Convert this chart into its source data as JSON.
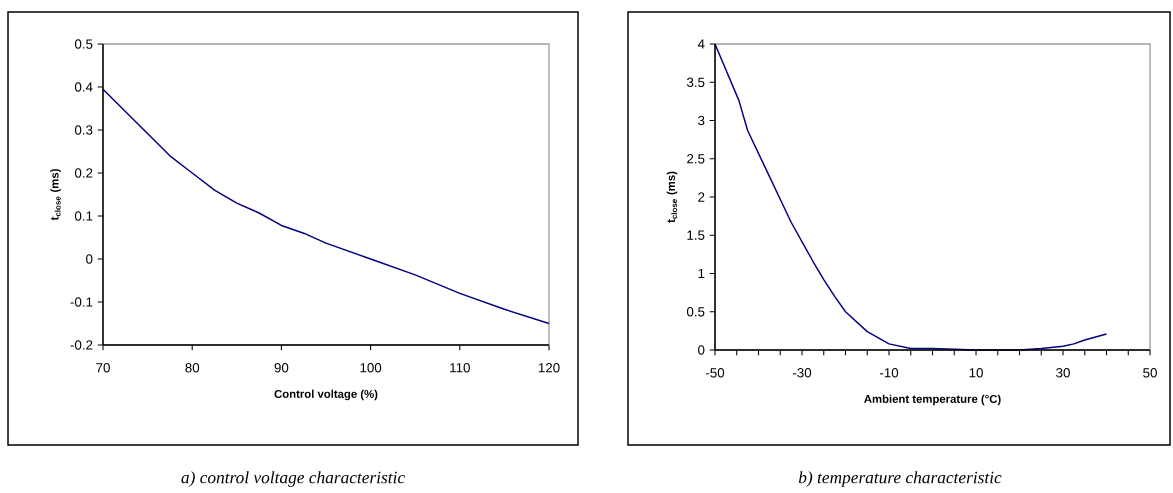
{
  "chart_data": [
    {
      "type": "line",
      "xlabel": "Control voltage (%)",
      "ylabel": "t$_{close}$ (ms)",
      "annotations": [
        "a) control voltage characteristic"
      ],
      "x": [
        70,
        77.5,
        80,
        82.5,
        85,
        87.5,
        90,
        92.5,
        95,
        100,
        105,
        110,
        115,
        120
      ],
      "series": [
        {
          "color": "#000080",
          "values": [
            0.395,
            0.24,
            0.2,
            0.16,
            0.13,
            0.107,
            0.078,
            0.06,
            0.037,
            0.0,
            -0.037,
            -0.08,
            -0.117,
            -0.15
          ]
        }
      ],
      "xlim": [
        70,
        120
      ],
      "ylim": [
        -0.2,
        0.5
      ],
      "xticks": [
        70,
        80,
        90,
        100,
        110,
        120
      ],
      "yticks": [
        -0.2,
        -0.1,
        0,
        0.1,
        0.2,
        0.3,
        0.4,
        0.5
      ]
    },
    {
      "type": "line",
      "xlabel": "Ambient temperature (°C)",
      "ylabel": "t$_{close}$ (ms)",
      "annotations": [
        "b) temperature characteristic"
      ],
      "x": [
        -50,
        -44.5,
        -42.5,
        -32.5,
        -27.5,
        -25,
        -22.5,
        -20,
        -15,
        -10,
        -5,
        0,
        10,
        20,
        25,
        30,
        32.5,
        35,
        40
      ],
      "series": [
        {
          "color": "#000080",
          "values": [
            4.0,
            3.26,
            2.87,
            1.67,
            1.16,
            0.92,
            0.7,
            0.5,
            0.24,
            0.08,
            0.02,
            0.02,
            0.0,
            0.0,
            0.02,
            0.05,
            0.08,
            0.13,
            0.21
          ]
        }
      ],
      "xlim": [
        -50,
        50
      ],
      "ylim": [
        0,
        4
      ],
      "xticks": [
        -50,
        {
          "value": -45,
          "label": null
        },
        {
          "value": -40,
          "label": null
        },
        {
          "value": -35,
          "label": null
        },
        -30,
        {
          "value": -25,
          "label": null
        },
        {
          "value": -20,
          "label": null
        },
        {
          "value": -15,
          "label": null
        },
        -10,
        {
          "value": -5,
          "label": null
        },
        {
          "value": 0,
          "label": null
        },
        {
          "value": 5,
          "label": null
        },
        10,
        {
          "value": 15,
          "label": null
        },
        {
          "value": 20,
          "label": null
        },
        {
          "value": 25,
          "label": null
        },
        30,
        {
          "value": 35,
          "label": null
        },
        {
          "value": 40,
          "label": null
        },
        {
          "value": 45,
          "label": null
        },
        50
      ],
      "yticks": [
        0,
        0.5,
        1,
        1.5,
        2,
        2.5,
        3,
        3.5,
        4
      ]
    }
  ]
}
